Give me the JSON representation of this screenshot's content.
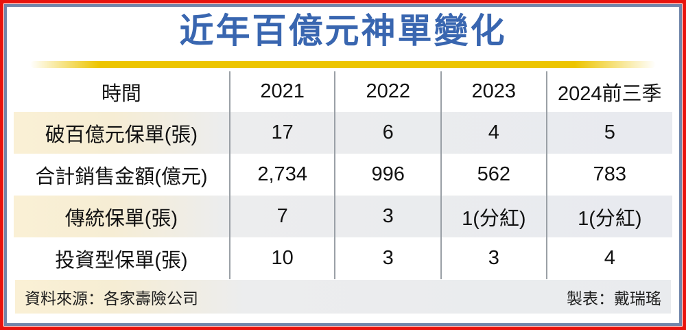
{
  "title": "近年百億元神單變化",
  "table": {
    "headers": [
      "時間",
      "2021",
      "2022",
      "2023",
      "2024前三季"
    ],
    "rows": [
      {
        "label": "破百億元保單(張)",
        "values": [
          "17",
          "6",
          "4",
          "5"
        ]
      },
      {
        "label": "合計銷售金額(億元)",
        "values": [
          "2,734",
          "996",
          "562",
          "783"
        ]
      },
      {
        "label": "傳統保單(張)",
        "values": [
          "7",
          "3",
          "1(分紅)",
          "1(分紅)"
        ]
      },
      {
        "label": "投資型保單(張)",
        "values": [
          "10",
          "3",
          "3",
          "4"
        ]
      }
    ]
  },
  "footer": {
    "source": "資料來源：各家壽險公司",
    "credit": "製表：戴瑞瑤"
  },
  "colors": {
    "title_blue": "#3966b0",
    "frame_red": "#e8140e",
    "frame_blue": "#7186ab",
    "gold_bar": "#edc500",
    "row_cream": "#faf0d5",
    "row_blue_gray": "#e8eaef",
    "divider_gray": "#9aa0a6"
  },
  "chart_data": {
    "type": "table",
    "title": "近年百億元神單變化",
    "categories": [
      "2021",
      "2022",
      "2023",
      "2024前三季"
    ],
    "series": [
      {
        "name": "破百億元保單(張)",
        "values": [
          17,
          6,
          4,
          5
        ]
      },
      {
        "name": "合計銷售金額(億元)",
        "values": [
          2734,
          996,
          562,
          783
        ]
      },
      {
        "name": "傳統保單(張)",
        "values": [
          "7",
          "3",
          "1(分紅)",
          "1(分紅)"
        ]
      },
      {
        "name": "投資型保單(張)",
        "values": [
          10,
          3,
          3,
          4
        ]
      }
    ],
    "source": "資料來源：各家壽險公司",
    "credit": "製表：戴瑞瑤"
  }
}
